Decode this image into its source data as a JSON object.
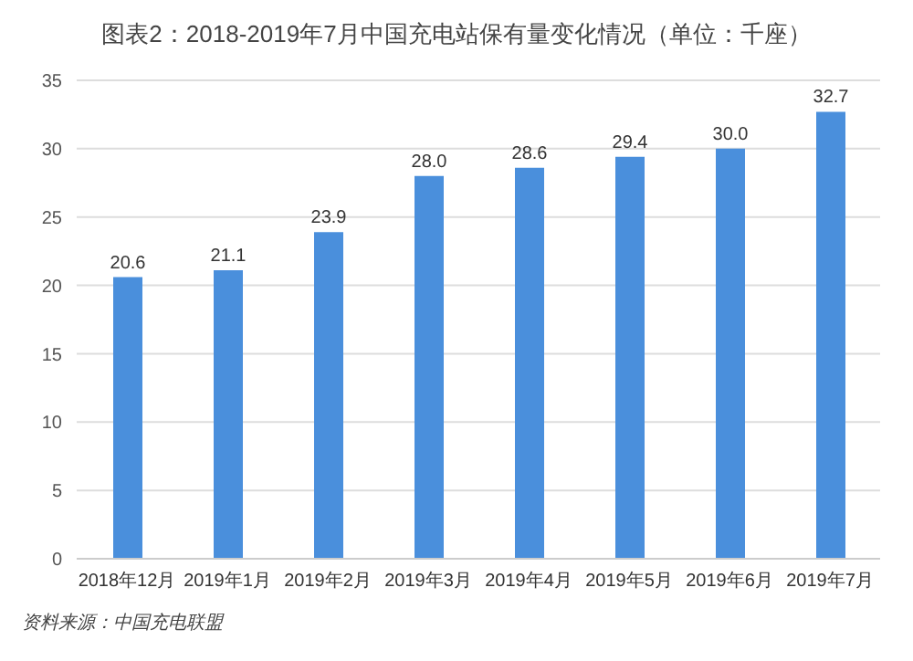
{
  "chart_data": {
    "type": "bar",
    "title": "图表2：2018-2019年7月中国充电站保有量变化情况（单位：千座）",
    "categories": [
      "2018年12月",
      "2019年1月",
      "2019年2月",
      "2019年3月",
      "2019年4月",
      "2019年5月",
      "2019年6月",
      "2019年7月"
    ],
    "values": [
      20.6,
      21.1,
      23.9,
      28.0,
      28.6,
      29.4,
      30.0,
      32.7
    ],
    "value_labels": [
      "20.6",
      "21.1",
      "23.9",
      "28.0",
      "28.6",
      "29.4",
      "30.0",
      "32.7"
    ],
    "color": "#4a8fdc",
    "ylim": [
      0,
      35
    ],
    "yticks": [
      0,
      5,
      10,
      15,
      20,
      25,
      30,
      35
    ],
    "grid": "y",
    "annotations": [
      "资料来源：中国充电联盟"
    ]
  }
}
